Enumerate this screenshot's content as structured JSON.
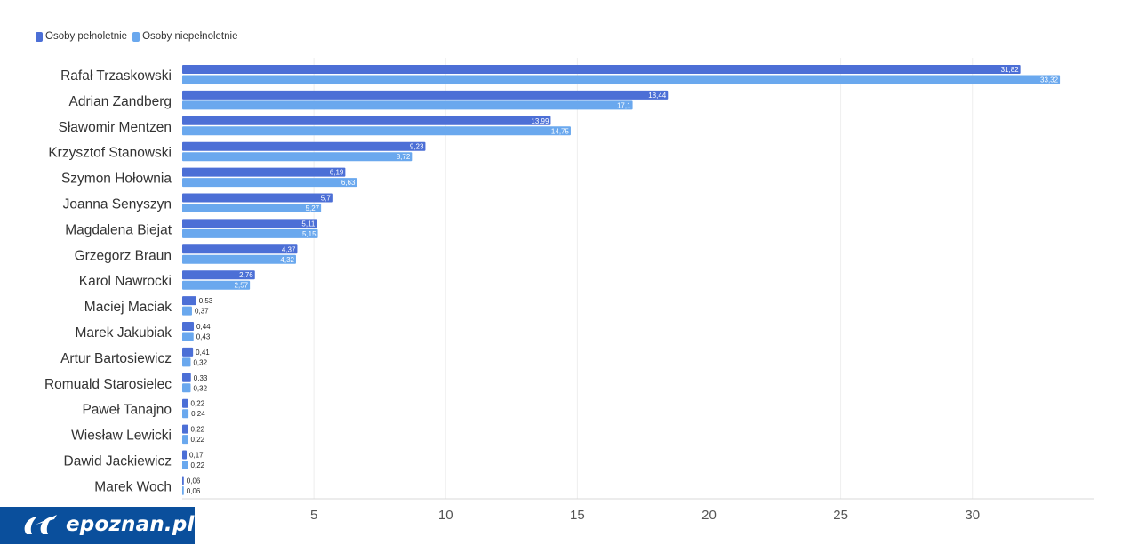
{
  "chart_data": {
    "type": "bar",
    "orientation": "horizontal",
    "categories": [
      "Rafał Trzaskowski",
      "Adrian Zandberg",
      "Sławomir Mentzen",
      "Krzysztof Stanowski",
      "Szymon Hołownia",
      "Joanna Senyszyn",
      "Magdalena Biejat",
      "Grzegorz Braun",
      "Karol Nawrocki",
      "Maciej Maciak",
      "Marek Jakubiak",
      "Artur Bartosiewicz",
      "Romuald Starosielec",
      "Paweł Tanajno",
      "Wiesław Lewicki",
      "Dawid Jackiewicz",
      "Marek Woch"
    ],
    "series": [
      {
        "name": "Osoby pełnoletnie",
        "color": "#4c6fd6",
        "values": [
          31.82,
          18.44,
          13.99,
          9.23,
          6.19,
          5.7,
          5.11,
          4.37,
          2.76,
          0.53,
          0.44,
          0.41,
          0.33,
          0.22,
          0.22,
          0.17,
          0.06
        ],
        "labels": [
          "31,82",
          "18,44",
          "13,99",
          "9,23",
          "6,19",
          "5,7",
          "5,11",
          "4,37",
          "2,76",
          "0,53",
          "0,44",
          "0,41",
          "0,33",
          "0,22",
          "0,22",
          "0,17",
          "0,06"
        ]
      },
      {
        "name": "Osoby niepełnoletnie",
        "color": "#6aa8ee",
        "values": [
          33.32,
          17.1,
          14.75,
          8.72,
          6.63,
          5.27,
          5.15,
          4.32,
          2.57,
          0.37,
          0.43,
          0.32,
          0.32,
          0.24,
          0.22,
          0.22,
          0.06
        ],
        "labels": [
          "33,32",
          "17,1",
          "14,75",
          "8,72",
          "6,63",
          "5,27",
          "5,15",
          "4,32",
          "2,57",
          "0,37",
          "0,43",
          "0,32",
          "0,32",
          "0,24",
          "0,22",
          "0,22",
          "0,06"
        ]
      }
    ],
    "x_ticks": [
      5,
      10,
      15,
      20,
      25,
      30
    ],
    "xlim": [
      0,
      34.6
    ],
    "grid": true,
    "legend_position": "top-left"
  },
  "logo": {
    "text": "epoznan.pl"
  }
}
